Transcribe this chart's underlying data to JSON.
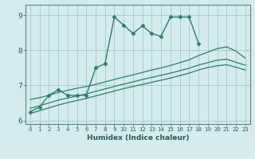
{
  "xlabel": "Humidex (Indice chaleur)",
  "ylabel": "",
  "xlim": [
    -0.5,
    23.5
  ],
  "ylim": [
    5.9,
    9.3
  ],
  "xticks": [
    0,
    1,
    2,
    3,
    4,
    5,
    6,
    7,
    8,
    9,
    10,
    11,
    12,
    13,
    14,
    15,
    16,
    17,
    18,
    19,
    20,
    21,
    22,
    23
  ],
  "yticks": [
    6,
    7,
    8,
    9
  ],
  "bg_color": "#d4ecec",
  "grid_color": "#aacece",
  "line_color": "#2d7d6e",
  "lines": [
    {
      "x": [
        0,
        1,
        2,
        3,
        4,
        5,
        6,
        7,
        8,
        9,
        10,
        11,
        12,
        13,
        14,
        15,
        16,
        17,
        18
      ],
      "y": [
        6.25,
        6.38,
        6.72,
        6.88,
        6.72,
        6.72,
        6.72,
        7.5,
        7.62,
        8.95,
        8.72,
        8.48,
        8.7,
        8.48,
        8.4,
        8.95,
        8.95,
        8.95,
        8.2
      ],
      "marker": "D",
      "markersize": 2.5,
      "linewidth": 1.0,
      "linestyle": "-"
    },
    {
      "x": [
        0,
        1,
        2,
        3,
        4,
        5,
        6,
        7,
        8,
        9,
        10,
        11,
        12,
        13,
        14,
        15,
        16,
        17,
        18,
        19,
        20,
        21,
        22,
        23
      ],
      "y": [
        6.6,
        6.65,
        6.72,
        6.8,
        6.86,
        6.92,
        6.97,
        7.03,
        7.1,
        7.17,
        7.24,
        7.3,
        7.37,
        7.44,
        7.5,
        7.57,
        7.65,
        7.73,
        7.85,
        7.95,
        8.05,
        8.1,
        7.98,
        7.78
      ],
      "marker": null,
      "markersize": 0,
      "linewidth": 0.9,
      "linestyle": "-"
    },
    {
      "x": [
        0,
        1,
        2,
        3,
        4,
        5,
        6,
        7,
        8,
        9,
        10,
        11,
        12,
        13,
        14,
        15,
        16,
        17,
        18,
        19,
        20,
        21,
        22,
        23
      ],
      "y": [
        6.35,
        6.42,
        6.5,
        6.58,
        6.64,
        6.7,
        6.76,
        6.83,
        6.9,
        6.97,
        7.04,
        7.1,
        7.17,
        7.23,
        7.29,
        7.35,
        7.42,
        7.49,
        7.58,
        7.65,
        7.72,
        7.75,
        7.66,
        7.58
      ],
      "marker": null,
      "markersize": 0,
      "linewidth": 0.9,
      "linestyle": "-"
    },
    {
      "x": [
        0,
        1,
        2,
        3,
        4,
        5,
        6,
        7,
        8,
        9,
        10,
        11,
        12,
        13,
        14,
        15,
        16,
        17,
        18,
        19,
        20,
        21,
        22,
        23
      ],
      "y": [
        6.2,
        6.28,
        6.36,
        6.44,
        6.51,
        6.57,
        6.63,
        6.7,
        6.77,
        6.84,
        6.91,
        6.97,
        7.03,
        7.09,
        7.15,
        7.21,
        7.28,
        7.35,
        7.44,
        7.51,
        7.56,
        7.59,
        7.52,
        7.44
      ],
      "marker": null,
      "markersize": 0,
      "linewidth": 0.9,
      "linestyle": "-"
    }
  ]
}
